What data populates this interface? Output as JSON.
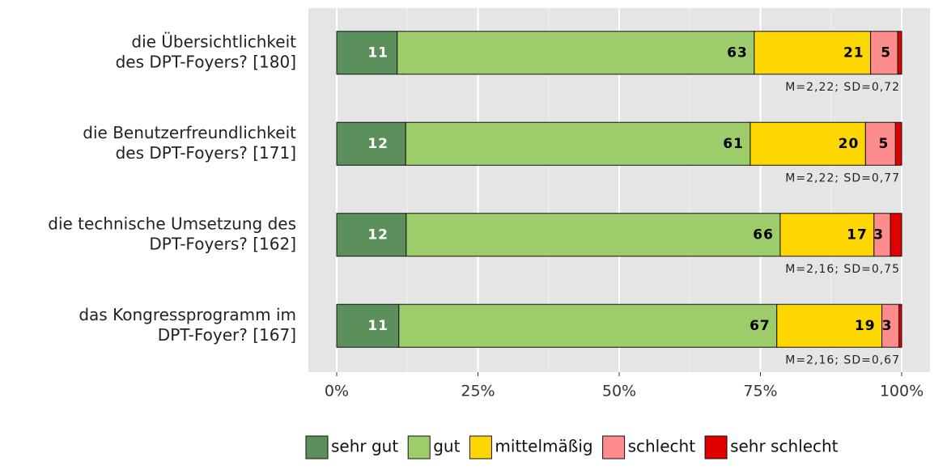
{
  "chart_data": {
    "type": "stacked_bar_horizontal",
    "categories": [
      [
        "die Übersichtlichkeit",
        "des DPT-Foyers? [180]"
      ],
      [
        "die Benutzerfreundlichkeit",
        "des DPT-Foyers? [171]"
      ],
      [
        "die technische Umsetzung des",
        "DPT-Foyers? [162]"
      ],
      [
        "das Kongressprogramm im",
        "DPT-Foyer? [167]"
      ]
    ],
    "series": [
      {
        "name": "sehr gut",
        "color": "#5b8f5b",
        "label_color": "#ffffff",
        "values": [
          10.7,
          12.2,
          12.3,
          11.0
        ],
        "value_labels": [
          "11",
          "12",
          "12",
          "11"
        ]
      },
      {
        "name": "gut",
        "color": "#9dcc6a",
        "label_color": "#000000",
        "values": [
          63.2,
          61.0,
          66.2,
          66.9
        ],
        "value_labels": [
          "63",
          "61",
          "66",
          "67"
        ]
      },
      {
        "name": "mittelmäßig",
        "color": "#ffd700",
        "label_color": "#000000",
        "values": [
          20.6,
          20.4,
          16.6,
          18.6
        ],
        "value_labels": [
          "21",
          "20",
          "17",
          "19"
        ]
      },
      {
        "name": "schlecht",
        "color": "#ff8c8c",
        "label_color": "#000000",
        "values": [
          4.8,
          5.3,
          2.9,
          3.0
        ],
        "value_labels": [
          "5",
          "5",
          "3",
          "3"
        ]
      },
      {
        "name": "sehr schlecht",
        "color": "#e00000",
        "label_color": "#000000",
        "values": [
          0.7,
          1.1,
          2.0,
          0.5
        ],
        "value_labels": [
          null,
          null,
          null,
          null
        ]
      }
    ],
    "annotations": [
      "M=2,22; SD=0,72",
      "M=2,22; SD=0,77",
      "M=2,16; SD=0,75",
      "M=2,16; SD=0,67"
    ],
    "xlim": [
      0,
      100
    ],
    "xticks": [
      {
        "value": 0,
        "label": "0%"
      },
      {
        "value": 25,
        "label": "25%"
      },
      {
        "value": 50,
        "label": "50%"
      },
      {
        "value": 75,
        "label": "75%"
      },
      {
        "value": 100,
        "label": "100%"
      }
    ],
    "grid": true,
    "legend": "bottom"
  }
}
